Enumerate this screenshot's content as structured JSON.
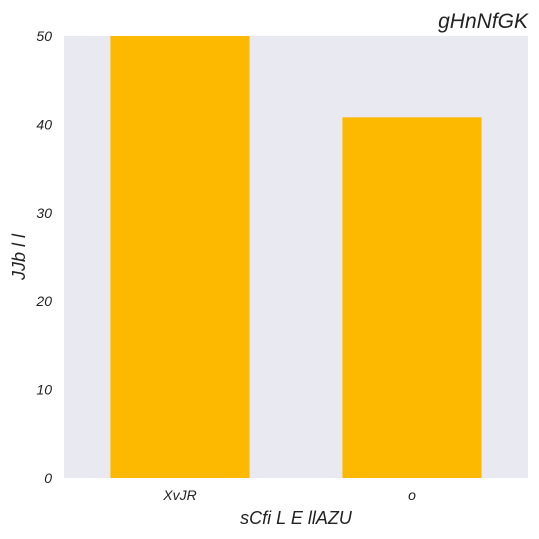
{
  "chart_data": {
    "type": "bar",
    "title": "gHnNfGK",
    "xlabel": "sCfi L E llAZU",
    "ylabel": "JJb l l",
    "categories": [
      "XvJR",
      "o"
    ],
    "values": [
      50,
      40.8
    ],
    "ylim": [
      0,
      50
    ],
    "yticks": [
      0,
      10,
      20,
      30,
      40,
      50
    ],
    "grid": false,
    "legend": "none",
    "colors": {
      "bar": "#FDB900",
      "plot_background": "#E9E9F1",
      "text": "#222222"
    }
  }
}
